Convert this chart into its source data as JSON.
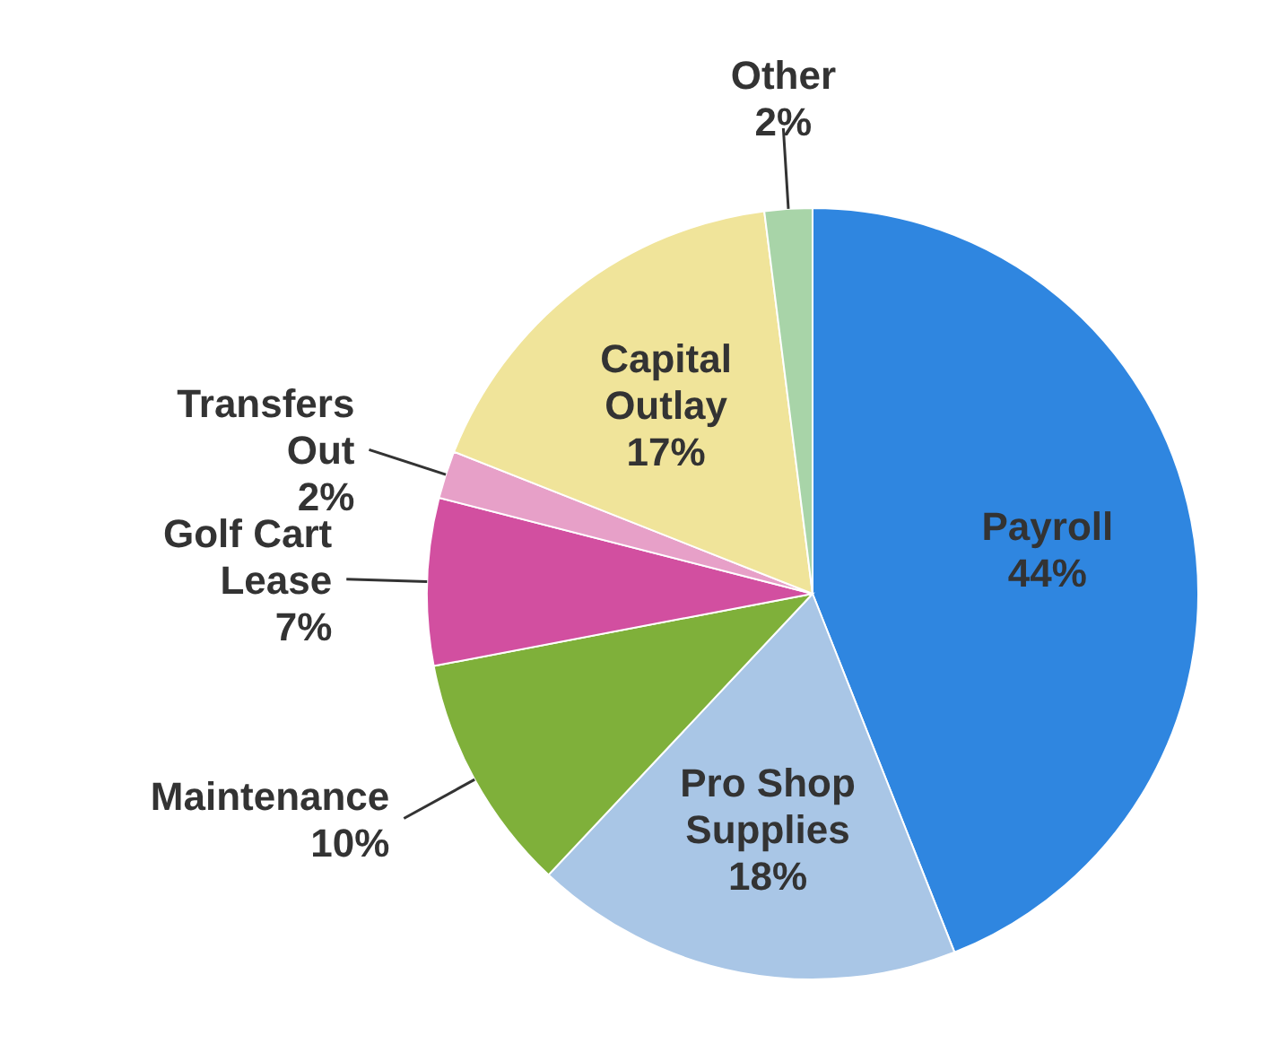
{
  "chart_data": {
    "type": "pie",
    "categories": [
      "Payroll",
      "Pro Shop Supplies",
      "Maintenance",
      "Golf Cart Lease",
      "Transfers Out",
      "Capital Outlay",
      "Other"
    ],
    "values": [
      44,
      18,
      10,
      7,
      2,
      17,
      2
    ],
    "value_labels": [
      "44%",
      "18%",
      "10%",
      "7%",
      "2%",
      "17%",
      "2%"
    ],
    "colors": [
      "#2f86e0",
      "#a9c6e6",
      "#7fb03a",
      "#d24fa0",
      "#e7a0c8",
      "#f0e49a",
      "#a8d4a8"
    ],
    "legend": false
  }
}
